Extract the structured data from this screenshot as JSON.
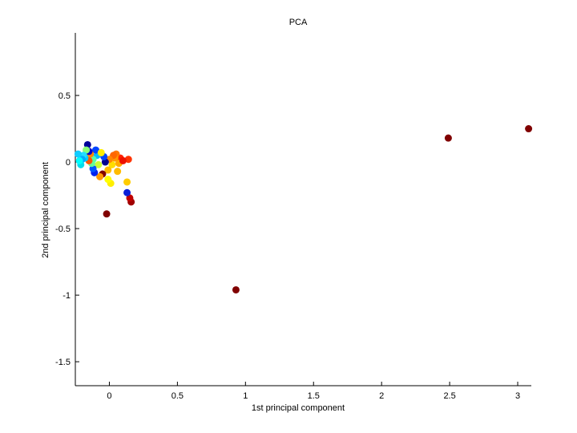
{
  "chart_data": {
    "type": "scatter",
    "title": "PCA",
    "xlabel": "1st principal component",
    "ylabel": "2nd principal component",
    "xlim": [
      -0.25,
      3.1
    ],
    "ylim": [
      -1.68,
      0.97
    ],
    "xticks": [
      0,
      0.5,
      1,
      1.5,
      2,
      2.5,
      3
    ],
    "xtick_labels": [
      "0",
      "0.5",
      "1",
      "1.5",
      "2",
      "2.5",
      "3"
    ],
    "yticks": [
      0.5,
      0,
      -0.5,
      -1,
      -1.5
    ],
    "ytick_labels": [
      "0.5",
      "0",
      "-0.5",
      "-1",
      "-1.5"
    ],
    "grid": false,
    "colormap": "jet",
    "points": [
      {
        "x": 3.08,
        "y": 0.25,
        "color": "#800000"
      },
      {
        "x": 2.49,
        "y": 0.18,
        "color": "#800000"
      },
      {
        "x": 0.93,
        "y": -0.96,
        "color": "#800000"
      },
      {
        "x": -0.02,
        "y": -0.39,
        "color": "#800000"
      },
      {
        "x": 0.16,
        "y": -0.3,
        "color": "#a00000"
      },
      {
        "x": 0.15,
        "y": -0.27,
        "color": "#c00000"
      },
      {
        "x": 0.13,
        "y": -0.23,
        "color": "#0a1fd8"
      },
      {
        "x": 0.13,
        "y": -0.15,
        "color": "#ffcc00"
      },
      {
        "x": 0.14,
        "y": 0.02,
        "color": "#ff3300"
      },
      {
        "x": 0.08,
        "y": 0.03,
        "color": "#ff2200"
      },
      {
        "x": 0.07,
        "y": -0.01,
        "color": "#ffaa00"
      },
      {
        "x": 0.06,
        "y": -0.07,
        "color": "#ffbb00"
      },
      {
        "x": 0.05,
        "y": 0.06,
        "color": "#ff7700"
      },
      {
        "x": 0.04,
        "y": 0.03,
        "color": "#ff9900"
      },
      {
        "x": 0.03,
        "y": 0.05,
        "color": "#ff6600"
      },
      {
        "x": 0.02,
        "y": -0.02,
        "color": "#ffdd00"
      },
      {
        "x": 0.01,
        "y": -0.16,
        "color": "#ffee00"
      },
      {
        "x": -0.01,
        "y": -0.13,
        "color": "#ffff00"
      },
      {
        "x": -0.01,
        "y": -0.06,
        "color": "#ffbb00"
      },
      {
        "x": 0.0,
        "y": 0.02,
        "color": "#ff8800"
      },
      {
        "x": -0.03,
        "y": 0.0,
        "color": "#00008f"
      },
      {
        "x": -0.04,
        "y": 0.04,
        "color": "#0044ff"
      },
      {
        "x": -0.05,
        "y": -0.09,
        "color": "#800000"
      },
      {
        "x": -0.07,
        "y": -0.11,
        "color": "#ff9900"
      },
      {
        "x": -0.08,
        "y": -0.02,
        "color": "#ccff33"
      },
      {
        "x": -0.09,
        "y": 0.05,
        "color": "#00bbff"
      },
      {
        "x": -0.1,
        "y": 0.09,
        "color": "#0044ff"
      },
      {
        "x": -0.11,
        "y": -0.08,
        "color": "#0022ee"
      },
      {
        "x": -0.12,
        "y": -0.05,
        "color": "#0055ff"
      },
      {
        "x": -0.12,
        "y": 0.02,
        "color": "#55ffaa"
      },
      {
        "x": -0.13,
        "y": -0.01,
        "color": "#66ff99"
      },
      {
        "x": -0.14,
        "y": 0.06,
        "color": "#ff8800"
      },
      {
        "x": -0.15,
        "y": 0.08,
        "color": "#0000cc"
      },
      {
        "x": -0.15,
        "y": 0.01,
        "color": "#ff5500"
      },
      {
        "x": -0.16,
        "y": 0.13,
        "color": "#000099"
      },
      {
        "x": -0.17,
        "y": 0.09,
        "color": "#88ff77"
      },
      {
        "x": -0.18,
        "y": 0.03,
        "color": "#00ccff"
      },
      {
        "x": -0.19,
        "y": 0.05,
        "color": "#22ddff"
      },
      {
        "x": -0.2,
        "y": 0.02,
        "color": "#00aaff"
      },
      {
        "x": -0.21,
        "y": -0.02,
        "color": "#00ddee"
      },
      {
        "x": -0.22,
        "y": 0.01,
        "color": "#00ffff"
      },
      {
        "x": -0.23,
        "y": 0.06,
        "color": "#11ccff"
      },
      {
        "x": -0.06,
        "y": 0.07,
        "color": "#ffee00"
      },
      {
        "x": 0.1,
        "y": 0.01,
        "color": "#ee1100"
      }
    ]
  }
}
